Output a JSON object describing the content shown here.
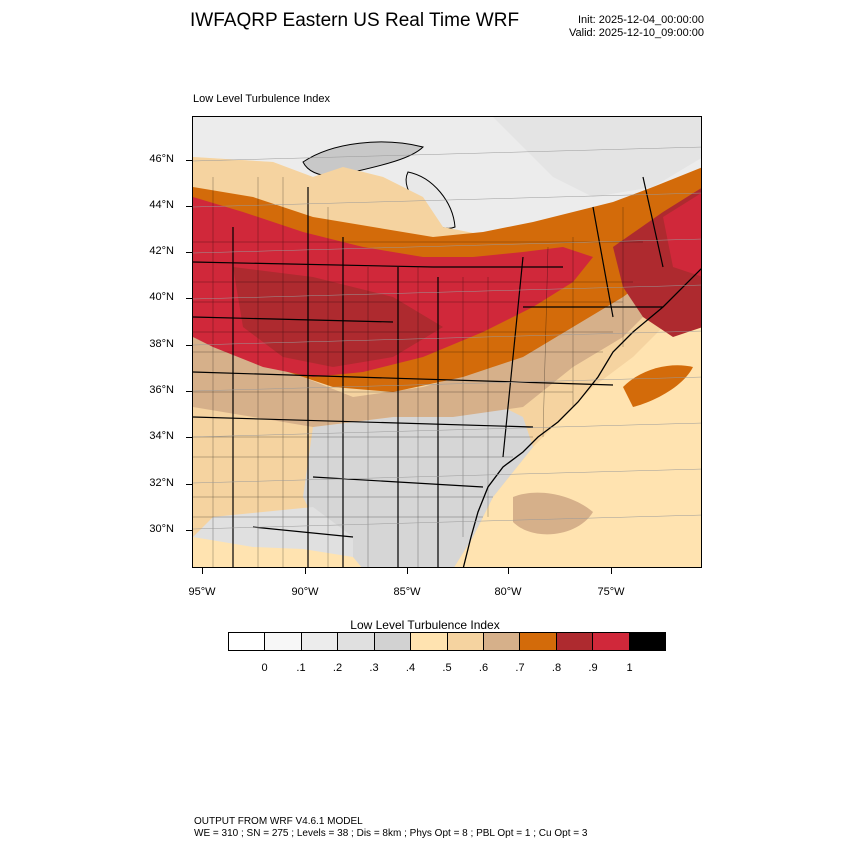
{
  "title": "IWFAQRP Eastern US Real Time WRF",
  "init": "Init: 2025-12-04_00:00:00",
  "valid": "Valid: 2025-12-10_09:00:00",
  "plot_label": "Low Level Turbulence Index",
  "map": {
    "latitude_labels": [
      "46°N",
      "44°N",
      "42°N",
      "40°N",
      "38°N",
      "36°N",
      "34°N",
      "32°N",
      "30°N"
    ],
    "longitude_labels": [
      "95°W",
      "90°W",
      "85°W",
      "80°W",
      "75°W"
    ],
    "field": "Low Level Turbulence Index",
    "ocean_color": "#ffe3b0",
    "land_low_color": "#d6d6d6",
    "high_color": "#d0283a"
  },
  "colorbar": {
    "title": "Low Level Turbulence Index",
    "colors": [
      "#ffffff",
      "#f7f7f7",
      "#ececec",
      "#e0e0e0",
      "#d2d2d2",
      "#ffe3b0",
      "#f5d3a0",
      "#d6b08a",
      "#d36b0a",
      "#ae2a2f",
      "#d0283a",
      "#000000"
    ],
    "labels": [
      "0",
      ".1",
      ".2",
      ".3",
      ".4",
      ".5",
      ".6",
      ".7",
      ".8",
      ".9",
      "1"
    ]
  },
  "footer": {
    "line1": "OUTPUT FROM WRF V4.6.1 MODEL",
    "line2": "WE = 310 ; SN = 275 ; Levels = 38 ; Dis = 8km ; Phys Opt = 8 ; PBL Opt = 1 ; Cu Opt = 3"
  }
}
